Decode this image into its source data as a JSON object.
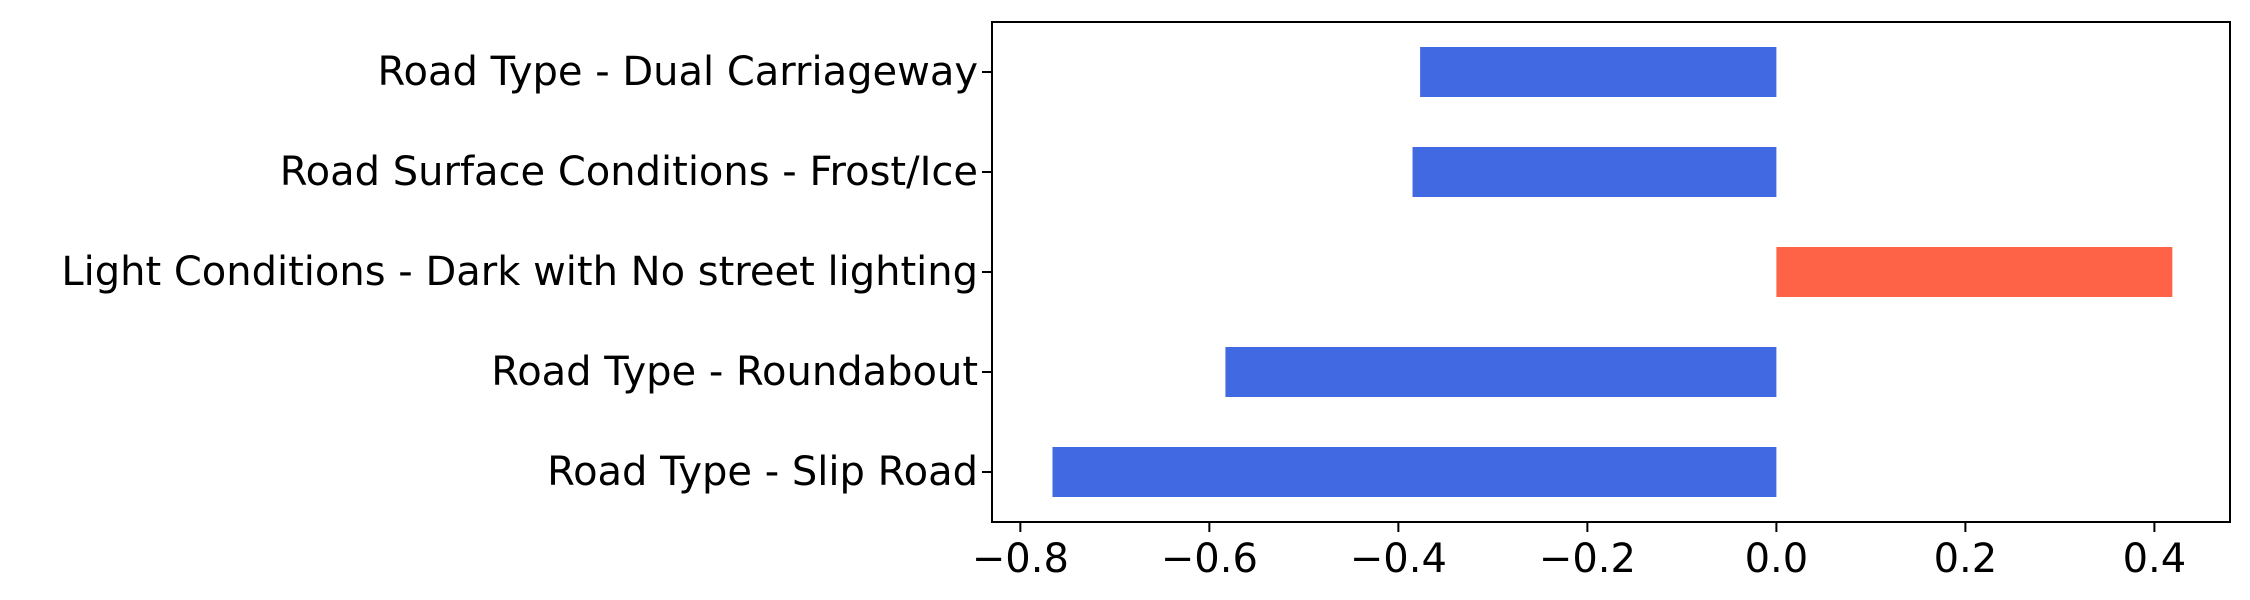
{
  "chart_data": {
    "type": "bar",
    "orientation": "horizontal",
    "title": "",
    "xlabel": "",
    "ylabel": "",
    "categories": [
      "Road Type - Slip Road",
      "Road Type - Roundabout",
      "Light Conditions - Dark with No street lighting",
      "Road Surface Conditions - Frost/Ice",
      "Road Type - Dual Carriageway"
    ],
    "values": [
      -0.766,
      -0.583,
      0.419,
      -0.385,
      -0.377
    ],
    "xlim": [
      -0.83,
      0.48
    ],
    "xticks": [
      -0.8,
      -0.6,
      -0.4,
      -0.2,
      0.0,
      0.2,
      0.4
    ],
    "xtick_labels": [
      "−0.8",
      "−0.6",
      "−0.4",
      "−0.2",
      "0.0",
      "0.2",
      "0.4"
    ],
    "colors": {
      "negative": "#4169E1",
      "positive": "#FF6347"
    },
    "grid": false,
    "legend": "none"
  }
}
